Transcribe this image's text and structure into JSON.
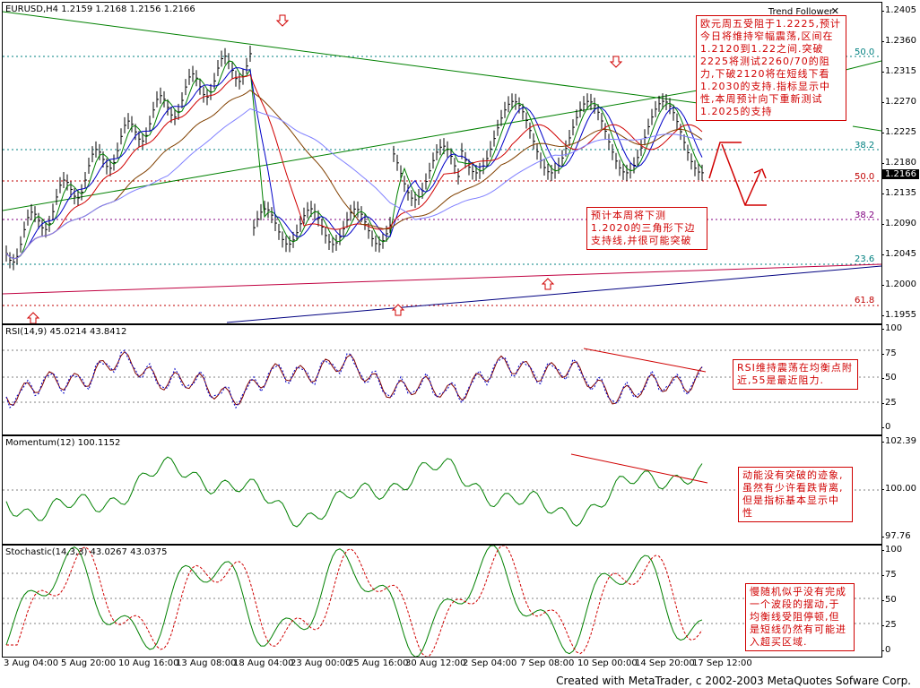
{
  "main": {
    "header": "EURUSD,H4  1.2159 1.2168 1.2156 1.2166",
    "expert": "Trend Follower",
    "price_tag": "1.2166",
    "ticks": [
      "1.2405",
      "1.2360",
      "1.2315",
      "1.2270",
      "1.2225",
      "1.2180",
      "1.2135",
      "1.2090",
      "1.2045",
      "1.2000",
      "1.1955"
    ],
    "fibo": {
      "f50a": "50.0",
      "f382a": "38.2",
      "f50b": "50.0",
      "f382b": "38.2",
      "f236": "23.6",
      "f618": "61.8"
    },
    "notes": {
      "n1": "欧元周五受阻于1.2225,预计今日将维持窄幅震荡,区间在1.2120到1.22之间.突破2225将测试2260/70的阻力,下破2120将在短线下看1.2030的支持.指标显示中性,本周预计向下重新测试1.2025的支持",
      "n2": "预计本周将下测1.2020的三角形下边支持线,并很可能突破"
    }
  },
  "rsi": {
    "label": "RSI(14,9) 45.0214 43.8412",
    "ticks": [
      "100",
      "75",
      "50",
      "25",
      "0"
    ],
    "note": "RSI维持震荡在均衡点附近,55是最近阻力."
  },
  "momentum": {
    "label": "Momentum(12) 100.1152",
    "ticks": [
      "102.39",
      "100.00",
      "97.76"
    ],
    "note": "动能没有突破的迹象,虽然有少许看跌背离,但是指标基本显示中性"
  },
  "stoch": {
    "label": "Stochastic(14,3,3) 43.0267 43.0375",
    "ticks": [
      "100",
      "75",
      "50",
      "25",
      "0"
    ],
    "note": "慢随机似乎没有完成一个波段的摆动,于均衡线受阻停顿,但是短线仍然有可能进入超买区域."
  },
  "time_labels": [
    "3 Aug 04:00",
    "5 Aug 20:00",
    "10 Aug 16:00",
    "13 Aug 08:00",
    "18 Aug 04:00",
    "23 Aug 00:00",
    "25 Aug 16:00",
    "30 Aug 12:00",
    "2 Sep 04:00",
    "7 Sep 08:00",
    "10 Sep 00:00",
    "14 Sep 20:00",
    "17 Sep 12:00"
  ],
  "footer": "Created with MetaTrader, c 2002-2003 MetaQuotes Sofware Corp.",
  "colors": {
    "ma_green": "#008000",
    "ma_blue": "#0000c8",
    "ma_red": "#d00000",
    "arrow": "#d00000"
  }
}
